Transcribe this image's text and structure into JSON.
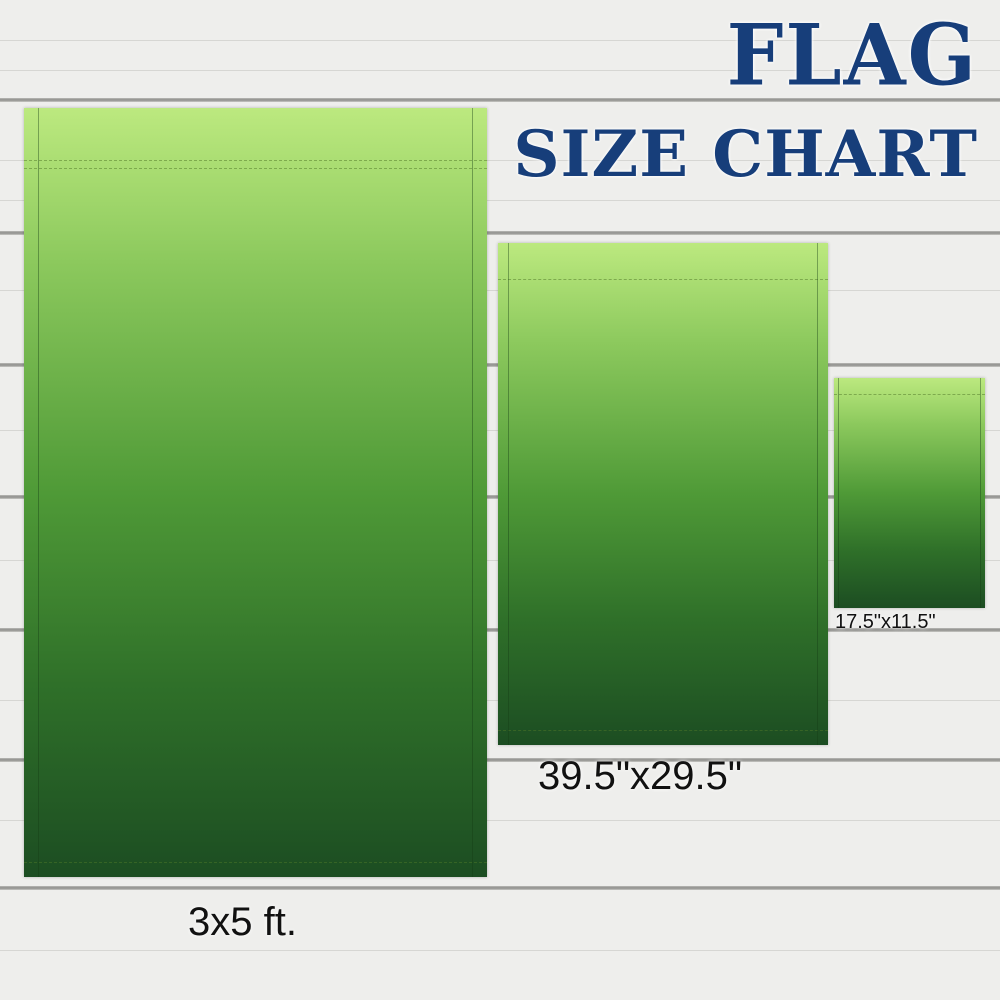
{
  "title": {
    "line1": "FLAG",
    "line2": "SIZE CHART"
  },
  "colors": {
    "title": "#173e7a",
    "flag_top": "#bce97f",
    "flag_bottom": "#1c4d22",
    "background": "#eeeeec"
  },
  "flags": [
    {
      "size_label": "3x5 ft."
    },
    {
      "size_label": "39.5\"x29.5\""
    },
    {
      "size_label": "17.5\"x11.5\""
    }
  ]
}
